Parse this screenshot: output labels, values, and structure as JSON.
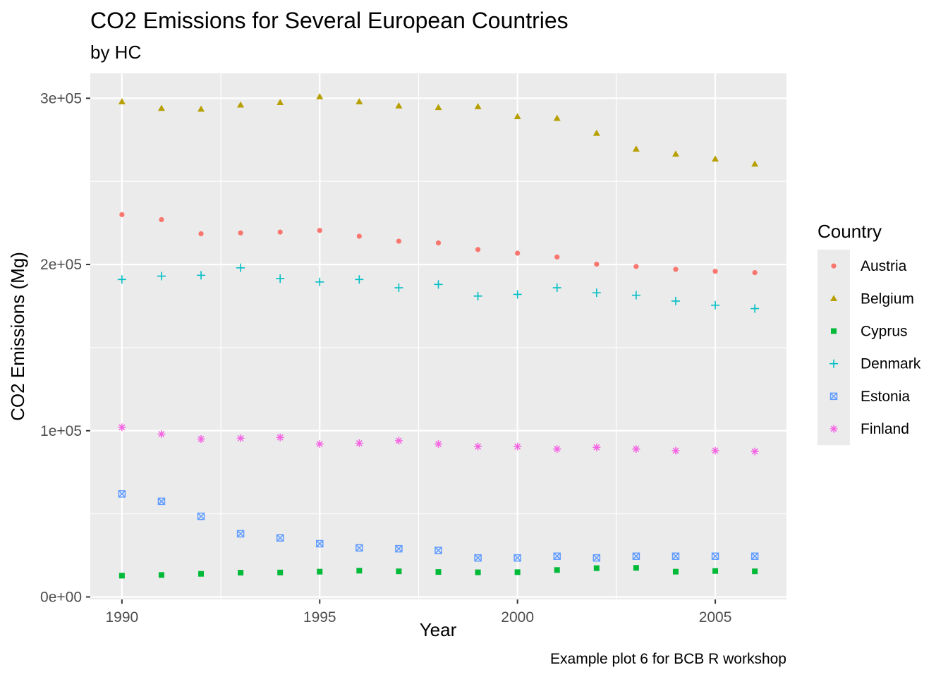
{
  "chart_data": {
    "type": "scatter",
    "title": "CO2 Emissions for Several European Countries",
    "subtitle": "by HC",
    "xlabel": "Year",
    "ylabel": "CO2 Emissions (Mg)",
    "caption": "Example plot 6 for BCB R workshop",
    "legend_title": "Country",
    "legend_position": "right",
    "grid": true,
    "xlim": [
      1989.2,
      2006.8
    ],
    "ylim": [
      -1500,
      315000
    ],
    "x_ticks": [
      1990,
      1995,
      2000,
      2005
    ],
    "x_tick_labels": [
      "1990",
      "1995",
      "2000",
      "2005"
    ],
    "y_ticks": [
      0,
      100000,
      200000,
      300000
    ],
    "y_tick_labels": [
      "0e+00",
      "1e+05",
      "2e+05",
      "3e+05"
    ],
    "x": [
      1990,
      1991,
      1992,
      1993,
      1994,
      1995,
      1996,
      1997,
      1998,
      1999,
      2000,
      2001,
      2002,
      2003,
      2004,
      2005,
      2006
    ],
    "series": [
      {
        "name": "Austria",
        "shape": "circle",
        "color": "#F8766D",
        "values": [
          230000,
          227000,
          218500,
          219000,
          219500,
          220500,
          217000,
          214000,
          213000,
          209000,
          206800,
          204500,
          200200,
          198800,
          197100,
          195900,
          195100
        ]
      },
      {
        "name": "Belgium",
        "shape": "triangle",
        "color": "#B79F00",
        "values": [
          298000,
          294000,
          293500,
          296000,
          297500,
          301000,
          298000,
          295500,
          294500,
          295000,
          289000,
          288000,
          279000,
          269500,
          266500,
          263500,
          260500
        ]
      },
      {
        "name": "Cyprus",
        "shape": "square",
        "color": "#00BA38",
        "values": [
          12800,
          13200,
          13900,
          14600,
          14700,
          15200,
          15800,
          15400,
          15000,
          14800,
          14900,
          16200,
          17300,
          17500,
          15200,
          15600,
          15400
        ]
      },
      {
        "name": "Denmark",
        "shape": "plus",
        "color": "#00BFC4",
        "values": [
          191000,
          193000,
          193500,
          198000,
          191500,
          189500,
          191000,
          186000,
          188000,
          181000,
          182000,
          186000,
          183000,
          181500,
          178000,
          175500,
          173500
        ]
      },
      {
        "name": "Estonia",
        "shape": "square-cross",
        "color": "#619CFF",
        "values": [
          62000,
          57500,
          48500,
          38000,
          35500,
          32000,
          29500,
          29000,
          28000,
          23500,
          23500,
          24500,
          23500,
          24500,
          24500,
          24500,
          24500
        ]
      },
      {
        "name": "Finland",
        "shape": "asterisk",
        "color": "#F564E3",
        "values": [
          102000,
          98000,
          95000,
          95500,
          96000,
          92000,
          92500,
          94000,
          92000,
          90500,
          90500,
          89000,
          90000,
          89000,
          88000,
          88000,
          87500
        ]
      }
    ]
  }
}
